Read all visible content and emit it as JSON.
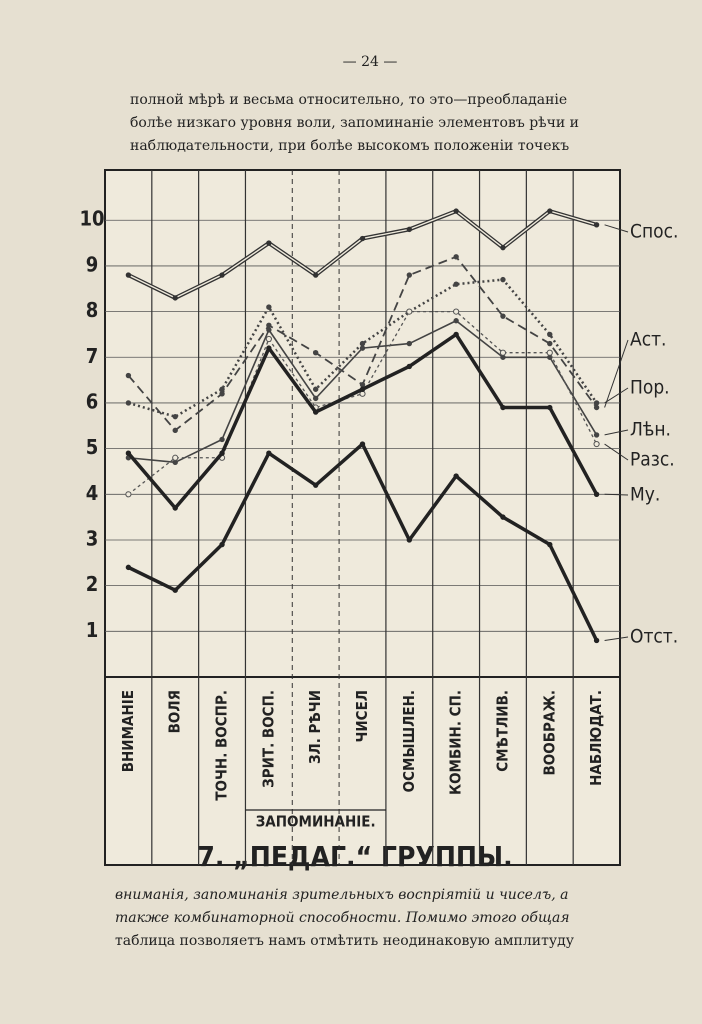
{
  "page_number": "— 24 —",
  "text_above": [
    "полной мѣрѣ и весьма относительно, то это—преобладанiе",
    "болѣе низкаго уровня воли, запоминанiе элементовъ рѣчи и",
    "наблюдательности, при болѣе высокомъ положенiи точекъ"
  ],
  "text_below": [
    "вниманiя, запоминанiя зрительныхъ воспрiятiй и чиселъ, а",
    "также комбинаторной способности. Помимо этого общая",
    "таблица позволяетъ намъ отмѣтить неодинаковую амплитуду"
  ],
  "chart_data": {
    "type": "line",
    "title": "7. „ПЕДАГ.“ ГРУППЫ.",
    "group_label": "ЗАПОМИНАНIЕ.",
    "categories": [
      "ВНИМАНIЕ",
      "ВОЛЯ",
      "ТОЧН. ВОСПР.",
      "ЗРИТ. ВОСП.",
      "ЗЛ. РѢЧИ",
      "ЧИСЕЛ",
      "ОСМЫШЛЕН.",
      "КОМБИН. СП.",
      "СМѢТЛИВ.",
      "ВООБРАЖ.",
      "НАБЛЮДАТ."
    ],
    "ylim": [
      0,
      11.1
    ],
    "yticks": [
      1,
      2,
      3,
      4,
      5,
      6,
      7,
      8,
      9,
      10
    ],
    "grid": true,
    "series": [
      {
        "name": "Спос.",
        "color": "#333",
        "style": "double",
        "values": [
          8.8,
          8.3,
          8.8,
          9.5,
          8.8,
          9.6,
          9.8,
          10.2,
          9.4,
          10.2,
          9.9
        ]
      },
      {
        "name": "Аст.",
        "color": "#444",
        "style": "dashed",
        "values": [
          6.6,
          5.4,
          6.2,
          7.7,
          7.1,
          6.4,
          8.8,
          9.2,
          7.9,
          7.3,
          5.9
        ]
      },
      {
        "name": "Пор.",
        "color": "#444",
        "style": "dotted",
        "values": [
          6.0,
          5.7,
          6.3,
          8.1,
          6.3,
          7.3,
          8.0,
          8.6,
          8.7,
          7.5,
          6.0
        ]
      },
      {
        "name": "Лѣн.",
        "color": "#444",
        "style": "thin",
        "values": [
          4.8,
          4.7,
          5.2,
          7.6,
          6.1,
          7.2,
          7.3,
          7.8,
          7.0,
          7.0,
          5.3
        ]
      },
      {
        "name": "Разс.",
        "color": "#555",
        "style": "circles",
        "values": [
          4.0,
          4.8,
          4.8,
          7.4,
          5.9,
          6.2,
          8.0,
          8.0,
          7.1,
          7.1,
          5.1
        ]
      },
      {
        "name": "Му.",
        "color": "#222",
        "style": "thick",
        "values": [
          4.9,
          3.7,
          4.9,
          7.2,
          5.8,
          6.3,
          6.8,
          7.5,
          5.9,
          5.9,
          4.0
        ]
      },
      {
        "name": "Отст.",
        "color": "#222",
        "style": "thick",
        "values": [
          2.4,
          1.9,
          2.9,
          4.9,
          4.2,
          5.1,
          3.0,
          4.4,
          3.5,
          2.9,
          0.8
        ]
      }
    ]
  }
}
